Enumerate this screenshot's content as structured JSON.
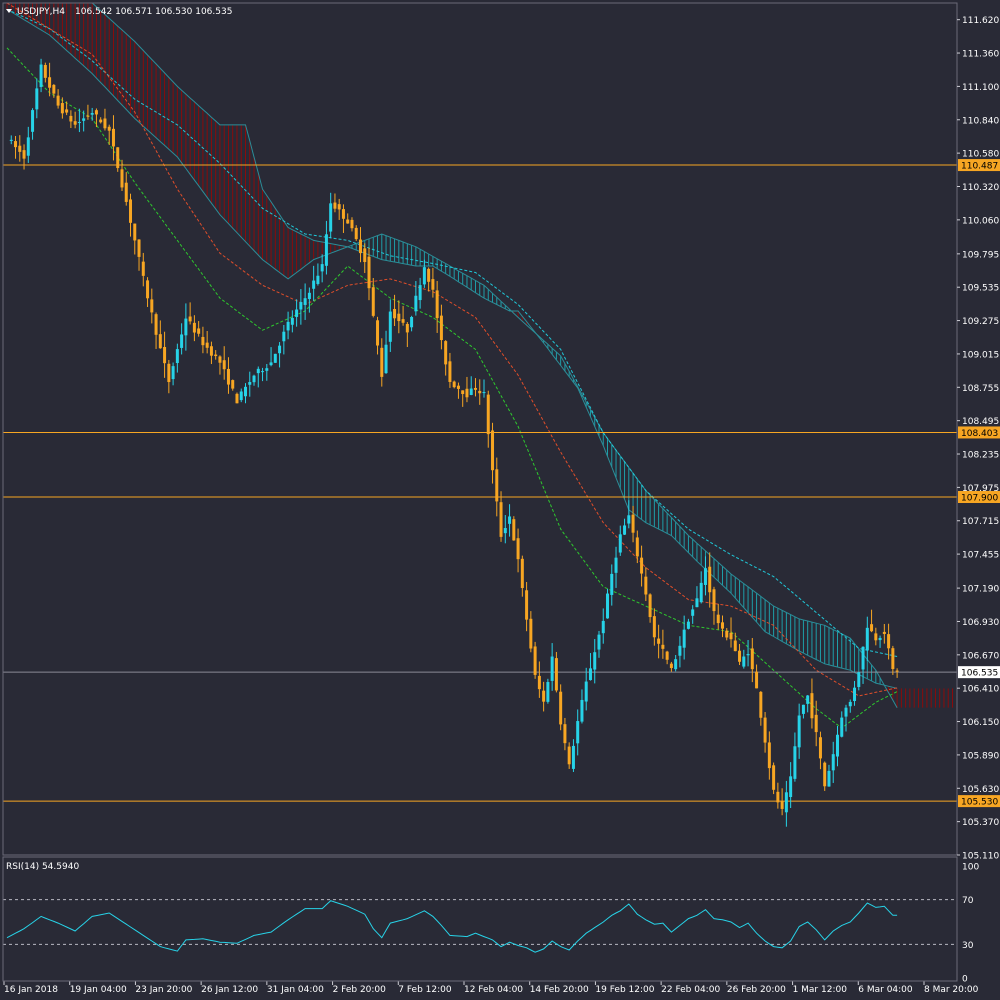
{
  "header": {
    "symbol_tf": "USDJPY,H4",
    "ohlc": "106.542 106.571 106.530 106.535"
  },
  "rsi_header": "RSI(14) 54.5940",
  "colors": {
    "background": "#292a36",
    "bull": "#27d3e8",
    "bear": "#f7a623",
    "level": "#f7a623",
    "cloud_bear": "#8b0b0b",
    "cloud_bull": "#1e9ea8",
    "tenkan": "#20c8d8",
    "kijun": "#e04e2a",
    "chikou": "#2ec82e",
    "span_line": "#2b8d98",
    "rsi": "#27d3e8"
  },
  "chart_data": [
    {
      "type": "candlestick",
      "symbol": "USDJPY",
      "timeframe": "H4",
      "ylim": [
        105.11,
        111.75
      ],
      "y_ticks": [
        "111.620",
        "111.360",
        "111.100",
        "110.840",
        "110.580",
        "110.320",
        "110.060",
        "109.795",
        "109.535",
        "109.275",
        "109.015",
        "108.755",
        "108.495",
        "108.235",
        "107.975",
        "107.715",
        "107.455",
        "107.190",
        "106.930",
        "106.670",
        "106.410",
        "106.150",
        "105.890",
        "105.630",
        "105.370",
        "105.110"
      ],
      "x_ticks": [
        "16 Jan 2018",
        "19 Jan 04:00",
        "23 Jan 20:00",
        "26 Jan 12:00",
        "31 Jan 04:00",
        "2 Feb 20:00",
        "7 Feb 12:00",
        "12 Feb 04:00",
        "14 Feb 20:00",
        "19 Feb 12:00",
        "22 Feb 04:00",
        "26 Feb 20:00",
        "1 Mar 12:00",
        "6 Mar 04:00",
        "8 Mar 20:00"
      ],
      "levels": [
        {
          "value": 110.487,
          "label": "110.487"
        },
        {
          "value": 108.403,
          "label": "108.403"
        },
        {
          "value": 107.9,
          "label": "107.900"
        },
        {
          "value": 105.53,
          "label": "105.530"
        }
      ],
      "current_price": {
        "value": 106.535,
        "label": "106.535"
      },
      "close_path": [
        [
          0,
          110.7
        ],
        [
          4,
          110.55
        ],
        [
          8,
          111.25
        ],
        [
          12,
          110.95
        ],
        [
          16,
          110.8
        ],
        [
          20,
          110.9
        ],
        [
          24,
          110.75
        ],
        [
          28,
          110.2
        ],
        [
          32,
          109.6
        ],
        [
          36,
          109.05
        ],
        [
          38,
          108.8
        ],
        [
          42,
          109.3
        ],
        [
          46,
          109.1
        ],
        [
          50,
          108.95
        ],
        [
          54,
          108.65
        ],
        [
          58,
          108.85
        ],
        [
          62,
          108.95
        ],
        [
          66,
          109.25
        ],
        [
          70,
          109.45
        ],
        [
          74,
          109.7
        ],
        [
          76,
          110.2
        ],
        [
          80,
          110.05
        ],
        [
          84,
          109.75
        ],
        [
          86,
          109.3
        ],
        [
          88,
          108.85
        ],
        [
          90,
          109.35
        ],
        [
          94,
          109.2
        ],
        [
          98,
          109.7
        ],
        [
          100,
          109.5
        ],
        [
          102,
          109.1
        ],
        [
          104,
          108.8
        ],
        [
          108,
          108.7
        ],
        [
          110,
          108.75
        ],
        [
          112,
          108.7
        ],
        [
          114,
          108.1
        ],
        [
          116,
          107.6
        ],
        [
          118,
          107.75
        ],
        [
          120,
          107.4
        ],
        [
          122,
          106.95
        ],
        [
          124,
          106.5
        ],
        [
          126,
          106.3
        ],
        [
          128,
          106.65
        ],
        [
          130,
          106.15
        ],
        [
          132,
          105.8
        ],
        [
          134,
          106.15
        ],
        [
          136,
          106.45
        ],
        [
          138,
          106.7
        ],
        [
          140,
          106.95
        ],
        [
          142,
          107.3
        ],
        [
          144,
          107.6
        ],
        [
          146,
          107.75
        ],
        [
          148,
          107.45
        ],
        [
          150,
          107.15
        ],
        [
          152,
          106.8
        ],
        [
          154,
          106.7
        ],
        [
          156,
          106.55
        ],
        [
          158,
          106.75
        ],
        [
          160,
          106.95
        ],
        [
          162,
          107.1
        ],
        [
          164,
          107.35
        ],
        [
          166,
          107.0
        ],
        [
          168,
          106.85
        ],
        [
          170,
          106.8
        ],
        [
          172,
          106.6
        ],
        [
          174,
          106.7
        ],
        [
          176,
          106.4
        ],
        [
          178,
          106.0
        ],
        [
          180,
          105.6
        ],
        [
          182,
          105.45
        ],
        [
          184,
          105.7
        ],
        [
          186,
          106.2
        ],
        [
          188,
          106.35
        ],
        [
          190,
          106.05
        ],
        [
          192,
          105.65
        ],
        [
          194,
          105.9
        ],
        [
          196,
          106.2
        ],
        [
          198,
          106.3
        ],
        [
          200,
          106.55
        ],
        [
          202,
          106.9
        ],
        [
          204,
          106.8
        ],
        [
          206,
          106.85
        ],
        [
          208,
          106.55
        ]
      ],
      "tenkan_path": [
        [
          0,
          111.7
        ],
        [
          10,
          111.55
        ],
        [
          20,
          111.3
        ],
        [
          30,
          111.0
        ],
        [
          40,
          110.8
        ],
        [
          50,
          110.5
        ],
        [
          60,
          110.15
        ],
        [
          70,
          109.95
        ],
        [
          80,
          109.9
        ],
        [
          90,
          109.78
        ],
        [
          100,
          109.72
        ],
        [
          110,
          109.65
        ],
        [
          120,
          109.4
        ],
        [
          130,
          109.05
        ],
        [
          140,
          108.4
        ],
        [
          150,
          107.95
        ],
        [
          160,
          107.65
        ],
        [
          170,
          107.45
        ],
        [
          180,
          107.28
        ],
        [
          190,
          107.0
        ],
        [
          200,
          106.72
        ],
        [
          210,
          106.65
        ]
      ],
      "kijun_path": [
        [
          0,
          111.75
        ],
        [
          10,
          111.55
        ],
        [
          20,
          111.35
        ],
        [
          30,
          110.9
        ],
        [
          40,
          110.3
        ],
        [
          50,
          109.8
        ],
        [
          60,
          109.55
        ],
        [
          70,
          109.4
        ],
        [
          80,
          109.55
        ],
        [
          90,
          109.6
        ],
        [
          100,
          109.5
        ],
        [
          110,
          109.3
        ],
        [
          120,
          108.85
        ],
        [
          130,
          108.25
        ],
        [
          140,
          107.7
        ],
        [
          150,
          107.35
        ],
        [
          160,
          107.1
        ],
        [
          170,
          107.05
        ],
        [
          180,
          106.9
        ],
        [
          190,
          106.55
        ],
        [
          200,
          106.35
        ],
        [
          210,
          106.42
        ]
      ],
      "chikou_path": [
        [
          0,
          111.4
        ],
        [
          10,
          111.05
        ],
        [
          20,
          110.85
        ],
        [
          30,
          110.35
        ],
        [
          40,
          109.9
        ],
        [
          50,
          109.45
        ],
        [
          60,
          109.2
        ],
        [
          70,
          109.35
        ],
        [
          80,
          109.7
        ],
        [
          90,
          109.45
        ],
        [
          100,
          109.3
        ],
        [
          110,
          109.05
        ],
        [
          120,
          108.45
        ],
        [
          130,
          107.65
        ],
        [
          140,
          107.2
        ],
        [
          150,
          107.05
        ],
        [
          160,
          106.9
        ],
        [
          170,
          106.85
        ],
        [
          180,
          106.55
        ],
        [
          190,
          106.25
        ],
        [
          196,
          106.1
        ],
        [
          204,
          106.3
        ],
        [
          210,
          106.4
        ]
      ],
      "span_a_path": [
        [
          0,
          111.7
        ],
        [
          10,
          111.5
        ],
        [
          20,
          111.2
        ],
        [
          30,
          110.85
        ],
        [
          40,
          110.55
        ],
        [
          50,
          110.1
        ],
        [
          60,
          109.75
        ],
        [
          66,
          109.6
        ],
        [
          72,
          109.75
        ],
        [
          80,
          109.85
        ],
        [
          88,
          109.95
        ],
        [
          96,
          109.85
        ],
        [
          104,
          109.7
        ],
        [
          112,
          109.55
        ],
        [
          120,
          109.3
        ],
        [
          130,
          109.0
        ],
        [
          140,
          108.4
        ],
        [
          150,
          107.95
        ],
        [
          160,
          107.6
        ],
        [
          170,
          107.3
        ],
        [
          180,
          107.05
        ],
        [
          186,
          106.95
        ],
        [
          192,
          106.9
        ],
        [
          198,
          106.8
        ],
        [
          204,
          106.55
        ],
        [
          210,
          106.2
        ]
      ],
      "span_b_path": [
        [
          0,
          111.75
        ],
        [
          10,
          111.75
        ],
        [
          20,
          111.75
        ],
        [
          30,
          111.45
        ],
        [
          40,
          111.1
        ],
        [
          50,
          110.8
        ],
        [
          56,
          110.8
        ],
        [
          60,
          110.3
        ],
        [
          66,
          110.0
        ],
        [
          72,
          109.9
        ],
        [
          80,
          109.85
        ],
        [
          88,
          109.75
        ],
        [
          96,
          109.7
        ],
        [
          100,
          109.7
        ],
        [
          104,
          109.62
        ],
        [
          112,
          109.45
        ],
        [
          118,
          109.35
        ],
        [
          120,
          109.35
        ],
        [
          126,
          109.1
        ],
        [
          134,
          108.75
        ],
        [
          140,
          108.3
        ],
        [
          146,
          107.8
        ],
        [
          150,
          107.7
        ],
        [
          156,
          107.6
        ],
        [
          162,
          107.4
        ],
        [
          170,
          107.15
        ],
        [
          178,
          106.85
        ],
        [
          186,
          106.7
        ],
        [
          192,
          106.6
        ],
        [
          198,
          106.55
        ],
        [
          204,
          106.45
        ],
        [
          210,
          106.4
        ]
      ]
    },
    {
      "type": "line",
      "title": "RSI(14) 54.5940",
      "ylim": [
        0,
        100
      ],
      "y_ticks": [
        "100",
        "70",
        "30",
        "0"
      ],
      "guides": [
        70,
        30
      ],
      "values": [
        [
          0,
          36
        ],
        [
          4,
          44
        ],
        [
          8,
          55
        ],
        [
          12,
          49
        ],
        [
          16,
          42
        ],
        [
          20,
          55
        ],
        [
          24,
          58
        ],
        [
          28,
          48
        ],
        [
          32,
          38
        ],
        [
          36,
          28
        ],
        [
          40,
          24
        ],
        [
          42,
          34
        ],
        [
          46,
          35
        ],
        [
          50,
          32
        ],
        [
          54,
          31
        ],
        [
          58,
          38
        ],
        [
          62,
          41
        ],
        [
          66,
          52
        ],
        [
          70,
          62
        ],
        [
          74,
          62
        ],
        [
          76,
          69
        ],
        [
          80,
          64
        ],
        [
          84,
          57
        ],
        [
          86,
          44
        ],
        [
          88,
          36
        ],
        [
          90,
          49
        ],
        [
          94,
          53
        ],
        [
          98,
          60
        ],
        [
          100,
          55
        ],
        [
          102,
          47
        ],
        [
          104,
          38
        ],
        [
          108,
          37
        ],
        [
          110,
          40
        ],
        [
          112,
          37
        ],
        [
          114,
          34
        ],
        [
          116,
          28
        ],
        [
          118,
          32
        ],
        [
          120,
          29
        ],
        [
          122,
          27
        ],
        [
          124,
          23
        ],
        [
          126,
          26
        ],
        [
          128,
          33
        ],
        [
          130,
          28
        ],
        [
          132,
          25
        ],
        [
          134,
          33
        ],
        [
          136,
          40
        ],
        [
          138,
          45
        ],
        [
          140,
          50
        ],
        [
          142,
          56
        ],
        [
          144,
          60
        ],
        [
          146,
          66
        ],
        [
          148,
          57
        ],
        [
          150,
          52
        ],
        [
          152,
          48
        ],
        [
          154,
          49
        ],
        [
          156,
          41
        ],
        [
          158,
          47
        ],
        [
          160,
          53
        ],
        [
          162,
          56
        ],
        [
          164,
          61
        ],
        [
          166,
          53
        ],
        [
          168,
          52
        ],
        [
          170,
          50
        ],
        [
          172,
          45
        ],
        [
          174,
          49
        ],
        [
          176,
          40
        ],
        [
          178,
          33
        ],
        [
          180,
          28
        ],
        [
          182,
          27
        ],
        [
          184,
          33
        ],
        [
          186,
          46
        ],
        [
          188,
          50
        ],
        [
          190,
          43
        ],
        [
          192,
          34
        ],
        [
          194,
          42
        ],
        [
          196,
          47
        ],
        [
          198,
          50
        ],
        [
          200,
          58
        ],
        [
          202,
          67
        ],
        [
          204,
          63
        ],
        [
          206,
          64
        ],
        [
          208,
          56
        ]
      ]
    }
  ]
}
